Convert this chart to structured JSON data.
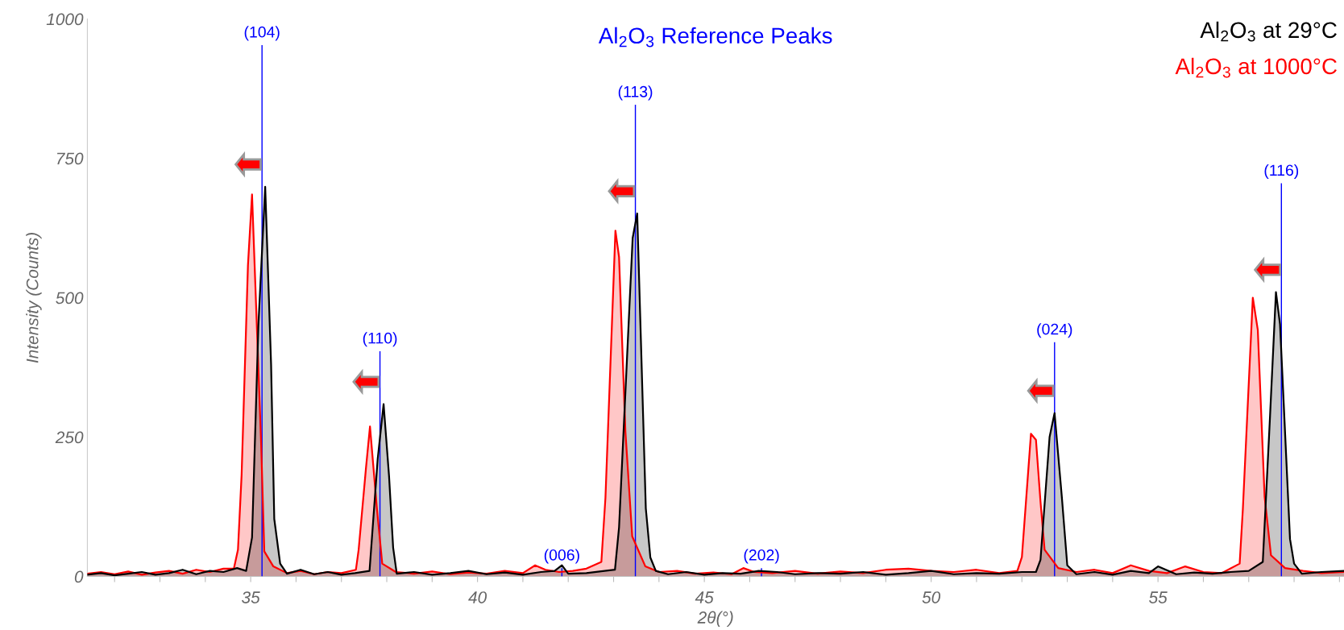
{
  "chart_data": {
    "type": "area",
    "title": "Al$_{2}$O$_{3}$ Reference Peaks",
    "xlabel": "2θ(°)",
    "ylabel": "Intensity (Counts)",
    "xlim": [
      31.4,
      59.1
    ],
    "ylim": [
      0,
      1000
    ],
    "xticks": [
      {
        "value": 32,
        "label": null
      },
      {
        "value": 33,
        "label": null
      },
      {
        "value": 34,
        "label": null
      },
      35,
      {
        "value": 36,
        "label": null
      },
      {
        "value": 37,
        "label": null
      },
      {
        "value": 38,
        "label": null
      },
      {
        "value": 39,
        "label": null
      },
      40,
      {
        "value": 41,
        "label": null
      },
      {
        "value": 42,
        "label": null
      },
      {
        "value": 43,
        "label": null
      },
      {
        "value": 44,
        "label": null
      },
      45,
      {
        "value": 46,
        "label": null
      },
      {
        "value": 47,
        "label": null
      },
      {
        "value": 48,
        "label": null
      },
      {
        "value": 49,
        "label": null
      },
      50,
      {
        "value": 51,
        "label": null
      },
      {
        "value": 52,
        "label": null
      },
      {
        "value": 53,
        "label": null
      },
      {
        "value": 54,
        "label": null
      },
      55,
      {
        "value": 56,
        "label": null
      },
      {
        "value": 57,
        "label": null
      },
      {
        "value": 58,
        "label": null
      },
      {
        "value": 59,
        "label": null
      }
    ],
    "yticks": [
      0,
      250,
      500,
      750,
      1000
    ],
    "grid": false,
    "legend": "top right",
    "marker": "none",
    "line_style": "solid",
    "series": [
      {
        "name": "Al$_{2}$O$_{3}$ at 1000°C",
        "color": "#ff0000",
        "x": [
          31.4,
          31.7,
          32.0,
          32.3,
          32.6,
          32.9,
          33.2,
          33.5,
          33.8,
          34.1,
          34.4,
          34.63,
          34.72,
          34.8,
          34.94,
          35.03,
          35.23,
          35.3,
          35.5,
          35.8,
          36.1,
          36.4,
          36.7,
          37.0,
          37.32,
          37.38,
          37.54,
          37.63,
          37.78,
          37.9,
          38.2,
          38.6,
          39.0,
          39.4,
          39.8,
          40.2,
          40.6,
          41.0,
          41.27,
          41.5,
          41.8,
          42.1,
          42.4,
          42.73,
          42.82,
          43.04,
          43.12,
          43.26,
          43.41,
          43.7,
          44.0,
          44.4,
          44.8,
          45.2,
          45.6,
          45.86,
          46.1,
          46.5,
          47.0,
          47.5,
          48.0,
          48.5,
          49.0,
          49.5,
          50.0,
          50.5,
          51.0,
          51.5,
          51.9,
          52.0,
          52.2,
          52.31,
          52.41,
          52.5,
          52.8,
          53.2,
          53.6,
          54.0,
          54.4,
          54.8,
          55.2,
          55.6,
          56.0,
          56.4,
          56.8,
          56.87,
          57.09,
          57.2,
          57.35,
          57.49,
          57.8,
          58.2,
          58.6,
          59.1
        ],
        "values": [
          5,
          8,
          4,
          9,
          3,
          7,
          10,
          5,
          12,
          8,
          14,
          14,
          48,
          182,
          558,
          685,
          240,
          45,
          18,
          6,
          10,
          4,
          8,
          6,
          12,
          48,
          193,
          269,
          124,
          23,
          8,
          5,
          9,
          4,
          7,
          5,
          10,
          6,
          20,
          12,
          8,
          10,
          14,
          26,
          141,
          620,
          573,
          260,
          72,
          18,
          8,
          10,
          5,
          7,
          4,
          15,
          8,
          6,
          10,
          5,
          9,
          6,
          12,
          14,
          10,
          8,
          12,
          6,
          10,
          35,
          256,
          245,
          134,
          48,
          15,
          8,
          12,
          6,
          20,
          10,
          6,
          18,
          8,
          6,
          23,
          120,
          500,
          442,
          143,
          38,
          15,
          10,
          6,
          8
        ]
      },
      {
        "name": "Al$_{2}$O$_{3}$ at 29°C",
        "color": "#000000",
        "x": [
          31.4,
          31.7,
          32.0,
          32.3,
          32.6,
          32.9,
          33.2,
          33.5,
          33.8,
          34.1,
          34.4,
          34.7,
          34.9,
          35.03,
          35.17,
          35.32,
          35.45,
          35.52,
          35.65,
          35.8,
          36.1,
          36.4,
          36.7,
          37.0,
          37.3,
          37.62,
          37.8,
          37.93,
          38.05,
          38.14,
          38.22,
          38.6,
          39.0,
          39.4,
          39.8,
          40.2,
          40.6,
          41.0,
          41.4,
          41.7,
          41.86,
          42.0,
          42.4,
          42.8,
          43.03,
          43.12,
          43.42,
          43.52,
          43.71,
          43.81,
          43.93,
          44.2,
          44.6,
          45.0,
          45.4,
          45.8,
          46.2,
          46.6,
          47.0,
          47.5,
          48.0,
          48.5,
          49.0,
          49.5,
          50.0,
          50.5,
          51.0,
          51.5,
          52.0,
          52.31,
          52.41,
          52.61,
          52.72,
          52.88,
          53.0,
          53.2,
          53.6,
          54.0,
          54.4,
          54.8,
          55.0,
          55.4,
          55.8,
          56.2,
          56.6,
          57.0,
          57.31,
          57.47,
          57.6,
          57.69,
          57.91,
          58.0,
          58.17,
          58.6,
          59.1
        ],
        "values": [
          3,
          6,
          2,
          5,
          8,
          3,
          6,
          12,
          4,
          10,
          8,
          15,
          10,
          70,
          450,
          699,
          380,
          103,
          23,
          5,
          12,
          4,
          8,
          3,
          6,
          10,
          211,
          309,
          180,
          52,
          5,
          8,
          3,
          6,
          10,
          4,
          7,
          3,
          8,
          10,
          20,
          5,
          6,
          10,
          12,
          88,
          607,
          651,
          122,
          34,
          10,
          4,
          8,
          3,
          6,
          5,
          10,
          8,
          4,
          6,
          5,
          8,
          3,
          6,
          10,
          4,
          6,
          5,
          8,
          8,
          30,
          250,
          293,
          143,
          20,
          4,
          8,
          3,
          10,
          6,
          18,
          4,
          7,
          5,
          8,
          10,
          26,
          288,
          510,
          452,
          67,
          23,
          5,
          8,
          10
        ]
      },
      {
        "type": "bar",
        "color": "#0000ff",
        "x": [
          35.25,
          37.85,
          41.86,
          43.48,
          46.26,
          52.72,
          57.72
        ],
        "values": [
          953,
          404,
          15,
          846,
          15,
          420,
          705
        ]
      }
    ],
    "annotations": [
      {
        "text": "(104)",
        "x": 35.25,
        "y": 953
      },
      {
        "text": "(110)",
        "x": 37.85,
        "y": 404
      },
      {
        "text": "(006)",
        "x": 41.86,
        "y": 15
      },
      {
        "text": "(113)",
        "x": 43.48,
        "y": 846
      },
      {
        "text": "(202)",
        "x": 46.26,
        "y": 15
      },
      {
        "text": "(024)",
        "x": 52.72,
        "y": 420
      },
      {
        "text": "(116)",
        "x": 57.72,
        "y": 705
      }
    ]
  }
}
